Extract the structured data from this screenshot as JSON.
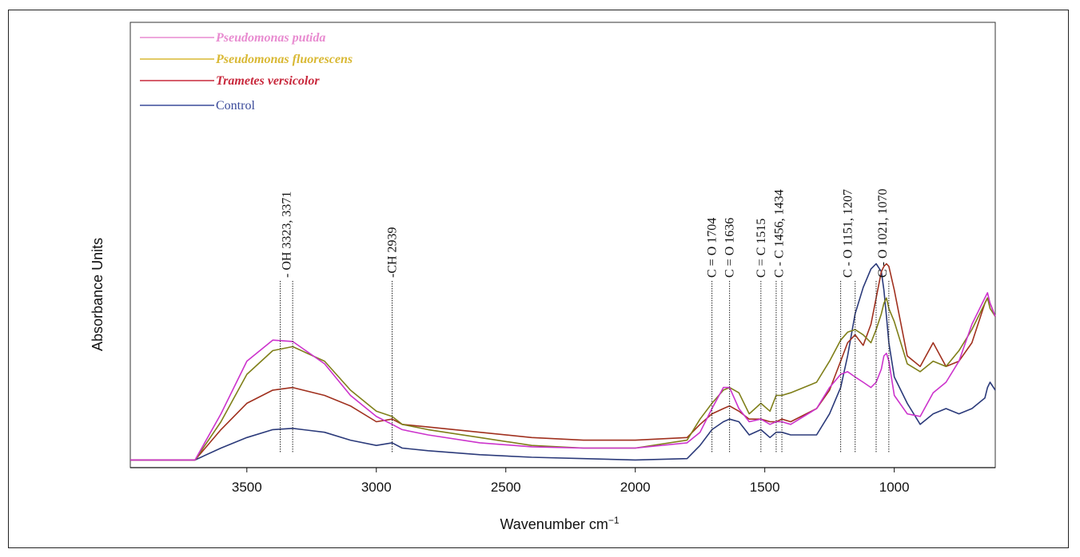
{
  "chart_data": {
    "type": "line",
    "xlabel": "Wavenumber cm",
    "xlabel_superscript": "−1",
    "ylabel": "Absorbance Units",
    "x_reversed": true,
    "xlim": [
      3950,
      610
    ],
    "ylim": [
      0,
      1
    ],
    "x_ticks": [
      "3500",
      "3000",
      "2500",
      "2000",
      "1500",
      "1000"
    ],
    "x_tick_values": [
      3500,
      3000,
      2500,
      2000,
      1500,
      1000
    ],
    "legend_position": "top-left",
    "series": [
      {
        "name": "Pseudomonas putida",
        "color": "#cc33cc",
        "legend_color": "#e88bd0",
        "x": [
          3950,
          3700,
          3600,
          3500,
          3400,
          3323,
          3200,
          3100,
          3000,
          2939,
          2900,
          2800,
          2600,
          2400,
          2200,
          2000,
          1800,
          1750,
          1704,
          1660,
          1636,
          1600,
          1560,
          1515,
          1480,
          1456,
          1434,
          1400,
          1300,
          1250,
          1207,
          1180,
          1151,
          1120,
          1090,
          1070,
          1050,
          1040,
          1030,
          1021,
          1000,
          950,
          900,
          850,
          800,
          750,
          700,
          650,
          640,
          630,
          610
        ],
        "y": [
          0.005,
          0.005,
          0.18,
          0.38,
          0.46,
          0.455,
          0.37,
          0.25,
          0.17,
          0.14,
          0.12,
          0.1,
          0.07,
          0.055,
          0.05,
          0.05,
          0.07,
          0.11,
          0.2,
          0.28,
          0.28,
          0.2,
          0.15,
          0.16,
          0.14,
          0.15,
          0.15,
          0.14,
          0.2,
          0.28,
          0.33,
          0.34,
          0.32,
          0.3,
          0.28,
          0.3,
          0.35,
          0.4,
          0.41,
          0.38,
          0.25,
          0.18,
          0.17,
          0.26,
          0.3,
          0.38,
          0.52,
          0.62,
          0.64,
          0.6,
          0.55
        ]
      },
      {
        "name": "Pseudomonas fluorescens",
        "color": "#7f7f19",
        "legend_color": "#d9b833",
        "x": [
          3950,
          3700,
          3600,
          3500,
          3400,
          3323,
          3200,
          3100,
          3000,
          2939,
          2900,
          2800,
          2600,
          2400,
          2200,
          2000,
          1800,
          1750,
          1704,
          1660,
          1636,
          1600,
          1560,
          1515,
          1480,
          1456,
          1434,
          1400,
          1300,
          1250,
          1207,
          1180,
          1151,
          1120,
          1090,
          1070,
          1050,
          1040,
          1030,
          1021,
          1000,
          950,
          900,
          850,
          800,
          750,
          700,
          650,
          640,
          630,
          610
        ],
        "y": [
          0.005,
          0.005,
          0.15,
          0.33,
          0.42,
          0.435,
          0.38,
          0.27,
          0.19,
          0.17,
          0.14,
          0.12,
          0.09,
          0.06,
          0.05,
          0.05,
          0.08,
          0.16,
          0.22,
          0.27,
          0.28,
          0.26,
          0.18,
          0.22,
          0.19,
          0.25,
          0.25,
          0.26,
          0.3,
          0.38,
          0.46,
          0.49,
          0.5,
          0.48,
          0.45,
          0.5,
          0.56,
          0.6,
          0.62,
          0.58,
          0.53,
          0.37,
          0.34,
          0.38,
          0.36,
          0.42,
          0.5,
          0.6,
          0.62,
          0.58,
          0.55
        ]
      },
      {
        "name": "Trametes versicolor",
        "color": "#a0301e",
        "legend_color": "#c8283c",
        "x": [
          3950,
          3700,
          3600,
          3500,
          3400,
          3323,
          3200,
          3100,
          3000,
          2939,
          2900,
          2800,
          2600,
          2400,
          2200,
          2000,
          1800,
          1750,
          1704,
          1660,
          1636,
          1600,
          1560,
          1515,
          1480,
          1456,
          1434,
          1400,
          1300,
          1250,
          1207,
          1180,
          1151,
          1120,
          1090,
          1070,
          1050,
          1040,
          1030,
          1021,
          1000,
          950,
          900,
          850,
          800,
          750,
          700,
          650,
          640,
          630,
          610
        ],
        "y": [
          0.005,
          0.005,
          0.12,
          0.22,
          0.27,
          0.28,
          0.25,
          0.21,
          0.15,
          0.16,
          0.14,
          0.13,
          0.11,
          0.09,
          0.08,
          0.08,
          0.09,
          0.14,
          0.18,
          0.2,
          0.21,
          0.19,
          0.16,
          0.16,
          0.15,
          0.15,
          0.16,
          0.15,
          0.2,
          0.27,
          0.38,
          0.45,
          0.48,
          0.44,
          0.52,
          0.62,
          0.72,
          0.74,
          0.75,
          0.74,
          0.65,
          0.4,
          0.36,
          0.45,
          0.36,
          0.38,
          0.45,
          0.6,
          0.62,
          0.6,
          0.55
        ]
      },
      {
        "name": "Control",
        "color": "#2b3a7a",
        "legend_color": "#3a4a9a",
        "x": [
          3950,
          3700,
          3600,
          3500,
          3400,
          3323,
          3200,
          3100,
          3000,
          2939,
          2900,
          2800,
          2600,
          2400,
          2200,
          2000,
          1800,
          1750,
          1704,
          1660,
          1636,
          1600,
          1560,
          1515,
          1480,
          1456,
          1434,
          1400,
          1300,
          1250,
          1207,
          1180,
          1151,
          1120,
          1090,
          1070,
          1050,
          1040,
          1030,
          1021,
          1000,
          950,
          900,
          850,
          800,
          750,
          700,
          650,
          640,
          630,
          610
        ],
        "y": [
          0.005,
          0.005,
          0.05,
          0.09,
          0.12,
          0.125,
          0.11,
          0.08,
          0.06,
          0.07,
          0.05,
          0.04,
          0.025,
          0.015,
          0.01,
          0.005,
          0.01,
          0.06,
          0.12,
          0.15,
          0.16,
          0.15,
          0.1,
          0.12,
          0.09,
          0.11,
          0.11,
          0.1,
          0.1,
          0.18,
          0.28,
          0.4,
          0.56,
          0.66,
          0.73,
          0.75,
          0.72,
          0.65,
          0.55,
          0.45,
          0.32,
          0.22,
          0.14,
          0.18,
          0.2,
          0.18,
          0.2,
          0.24,
          0.28,
          0.3,
          0.27
        ]
      }
    ],
    "annotations": [
      {
        "label": "- OH 3323, 3371",
        "lines": [
          3371,
          3323
        ]
      },
      {
        "label": "-CH 2939",
        "lines": [
          2939
        ]
      },
      {
        "label": "C = O 1704",
        "lines": [
          1704
        ]
      },
      {
        "label": "C = O 1636",
        "lines": [
          1636
        ]
      },
      {
        "label": "C = C 1515",
        "lines": [
          1515
        ]
      },
      {
        "label": "C - C 1456, 1434",
        "lines": [
          1456,
          1434
        ]
      },
      {
        "label": "C - O 1151, 1207",
        "lines": [
          1207,
          1151
        ]
      },
      {
        "label": "C - O 1021, 1070",
        "lines": [
          1070,
          1021
        ]
      }
    ]
  }
}
